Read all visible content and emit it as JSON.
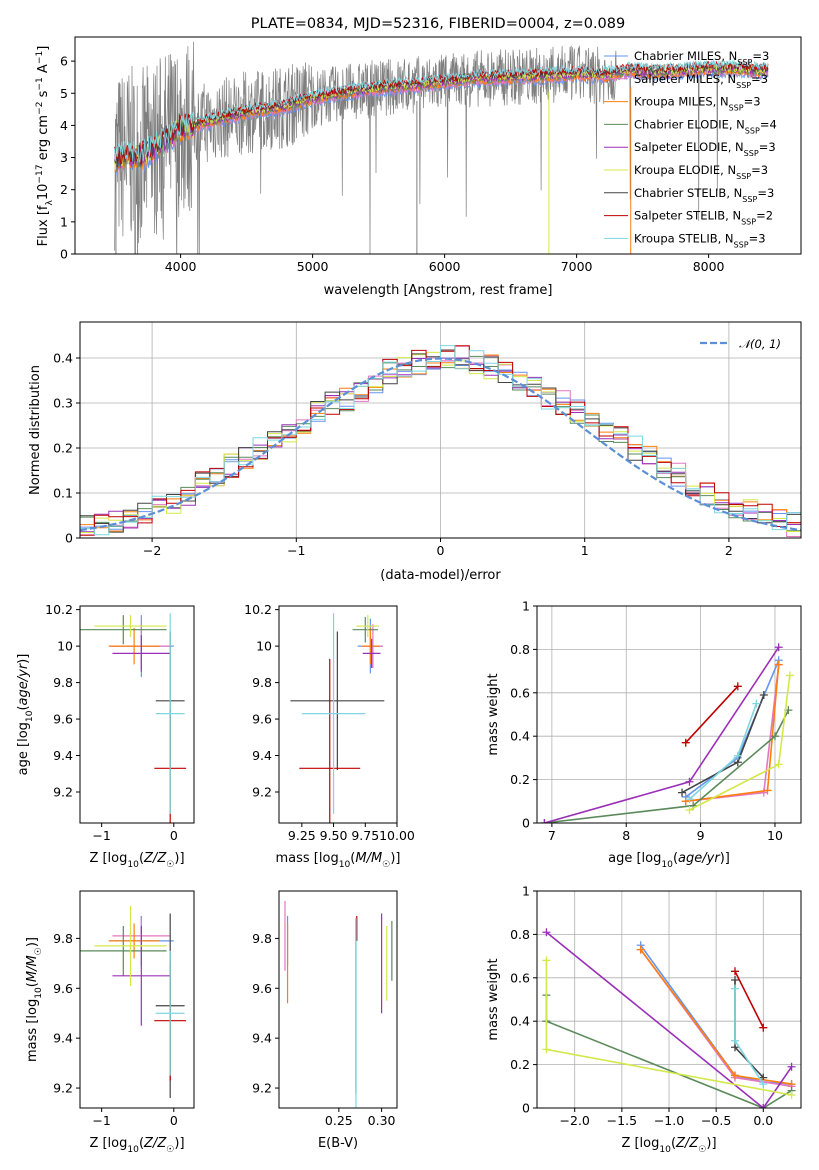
{
  "colors": {
    "chabrier_miles": "#6495ed",
    "salpeter_miles": "#e377c2",
    "kroupa_miles": "#ff7f0e",
    "chabrier_elodie": "#5a8a5a",
    "salpeter_elodie": "#9b30b8",
    "kroupa_elodie": "#d4e84a",
    "chabrier_stelib": "#444444",
    "salpeter_stelib": "#c00000",
    "kroupa_stelib": "#7fd6e0",
    "normal_curve": "#5b8fd6",
    "data": "#7f7f7f"
  },
  "chart_data": [
    {
      "type": "line",
      "title": "PLATE=0834, MJD=52316, FIBERID=0004, z=0.089",
      "xlabel": "wavelength [Angstrom, rest frame]",
      "ylabel": "Flux [f_λ10^-17 erg cm^-2 s^-1 A^-1]",
      "xlim": [
        3200,
        8700
      ],
      "ylim": [
        0,
        6.75
      ],
      "xticks": [
        4000,
        5000,
        6000,
        7000,
        8000
      ],
      "yticks": [
        0,
        1,
        2,
        3,
        4,
        5,
        6
      ],
      "legend_position": "top-right",
      "series": [
        {
          "name": "Chabrier MILES, N_SSP=3",
          "color_key": "chabrier_miles"
        },
        {
          "name": "Salpeter MILES, N_SSP=3",
          "color_key": "salpeter_miles"
        },
        {
          "name": "Kroupa MILES, N_SSP=3",
          "color_key": "kroupa_miles"
        },
        {
          "name": "Chabrier ELODIE, N_SSP=4",
          "color_key": "chabrier_elodie"
        },
        {
          "name": "Salpeter ELODIE, N_SSP=3",
          "color_key": "salpeter_elodie"
        },
        {
          "name": "Kroupa ELODIE, N_SSP=3",
          "color_key": "kroupa_elodie"
        },
        {
          "name": "Chabrier STELIB, N_SSP=3",
          "color_key": "chabrier_stelib"
        },
        {
          "name": "Salpeter STELIB, N_SSP=2",
          "color_key": "salpeter_stelib"
        },
        {
          "name": "Kroupa STELIB, N_SSP=3",
          "color_key": "kroupa_stelib"
        }
      ],
      "model_continuum": {
        "wavelength": [
          3500,
          3600,
          3700,
          3800,
          3900,
          4000,
          4200,
          4500,
          4800,
          5000,
          5300,
          5600,
          5900,
          6200,
          6500,
          6800,
          7000,
          7200,
          7400,
          7600,
          7800,
          8000,
          8200,
          8400
        ],
        "flux": [
          2.9,
          3.1,
          3.0,
          3.3,
          3.6,
          3.9,
          4.1,
          4.4,
          4.6,
          4.85,
          5.05,
          5.2,
          5.3,
          5.45,
          5.5,
          5.55,
          5.6,
          5.55,
          5.7,
          5.65,
          5.7,
          5.75,
          5.75,
          5.7
        ]
      },
      "model_wavelength_range": [
        3500,
        8450
      ]
    },
    {
      "type": "bar",
      "ylabel": "Normed distribution",
      "xlabel": "(data-model)/error",
      "xlim": [
        -2.5,
        2.5
      ],
      "ylim": [
        0,
        0.48
      ],
      "xticks": [
        -2,
        -1,
        0,
        1,
        2
      ],
      "yticks": [
        0.0,
        0.1,
        0.2,
        0.3,
        0.4
      ],
      "legend": {
        "label": "𝒩(0, 1)",
        "position": "top-right"
      },
      "bin_edges_start": -2.5,
      "bin_width": 0.1,
      "hist_base": [
        0.025,
        0.03,
        0.04,
        0.045,
        0.06,
        0.07,
        0.08,
        0.1,
        0.12,
        0.14,
        0.16,
        0.18,
        0.2,
        0.22,
        0.24,
        0.26,
        0.28,
        0.3,
        0.31,
        0.33,
        0.35,
        0.37,
        0.38,
        0.39,
        0.4,
        0.4,
        0.4,
        0.39,
        0.38,
        0.37,
        0.35,
        0.33,
        0.31,
        0.3,
        0.28,
        0.26,
        0.24,
        0.22,
        0.2,
        0.18,
        0.16,
        0.14,
        0.12,
        0.1,
        0.08,
        0.07,
        0.06,
        0.05,
        0.04,
        0.03
      ]
    },
    {
      "type": "scatter",
      "xlabel": "Z [log₁₀(Z/Z☉)]",
      "ylabel": "age [log₁₀(age/yr)]",
      "xlim": [
        -1.3,
        0.28
      ],
      "ylim": [
        9.03,
        10.22
      ],
      "xticks": [
        -1,
        0
      ],
      "yticks": [
        9.2,
        9.4,
        9.6,
        9.8,
        10.0,
        10.2
      ],
      "points": [
        {
          "x": -0.45,
          "y": 10.0,
          "xerr": 0.45,
          "yerr": 0.17,
          "color_key": "chabrier_miles"
        },
        {
          "x": -0.45,
          "y": 10.0,
          "xerr": 0.4,
          "yerr": 0.12,
          "color_key": "salpeter_miles"
        },
        {
          "x": -0.55,
          "y": 10.0,
          "xerr": 0.35,
          "yerr": 0.1,
          "color_key": "kroupa_miles"
        },
        {
          "x": -0.7,
          "y": 10.09,
          "xerr": 0.6,
          "yerr": 0.08,
          "color_key": "chabrier_elodie"
        },
        {
          "x": -0.45,
          "y": 9.96,
          "xerr": 0.4,
          "yerr": 0.1,
          "color_key": "salpeter_elodie"
        },
        {
          "x": -0.6,
          "y": 10.11,
          "xerr": 0.5,
          "yerr": 0.06,
          "color_key": "kroupa_elodie"
        },
        {
          "x": -0.05,
          "y": 9.7,
          "xerr": 0.2,
          "yerr": 0.38,
          "color_key": "chabrier_stelib"
        },
        {
          "x": -0.05,
          "y": 9.33,
          "xerr": 0.22,
          "yerr": 0.32,
          "color_key": "salpeter_stelib"
        },
        {
          "x": -0.05,
          "y": 9.63,
          "xerr": 0.2,
          "yerr": 0.55,
          "color_key": "kroupa_stelib"
        }
      ]
    },
    {
      "type": "scatter",
      "xlabel": "mass [log₁₀(M/M☉)]",
      "ylabel": "",
      "xlim": [
        9.07,
        10.0
      ],
      "ylim": [
        9.03,
        10.22
      ],
      "xticks": [
        9.25,
        9.5,
        9.75,
        10.0
      ],
      "xtick_labels": [
        "9.25",
        "9.50",
        "9.75",
        "10.00"
      ],
      "yticks": [
        9.2,
        9.4,
        9.6,
        9.8,
        10.0,
        10.2
      ],
      "points": [
        {
          "x": 9.79,
          "y": 10.0,
          "xerr": 0.1,
          "yerr": 0.15,
          "color_key": "chabrier_miles"
        },
        {
          "x": 9.81,
          "y": 10.0,
          "xerr": 0.08,
          "yerr": 0.12,
          "color_key": "salpeter_miles"
        },
        {
          "x": 9.79,
          "y": 10.0,
          "xerr": 0.07,
          "yerr": 0.1,
          "color_key": "kroupa_miles"
        },
        {
          "x": 9.75,
          "y": 10.09,
          "xerr": 0.1,
          "yerr": 0.07,
          "color_key": "chabrier_elodie"
        },
        {
          "x": 9.8,
          "y": 9.96,
          "xerr": 0.07,
          "yerr": 0.08,
          "color_key": "salpeter_elodie"
        },
        {
          "x": 9.77,
          "y": 10.11,
          "xerr": 0.09,
          "yerr": 0.06,
          "color_key": "kroupa_elodie"
        },
        {
          "x": 9.53,
          "y": 9.7,
          "xerr": 0.37,
          "yerr": 0.38,
          "color_key": "chabrier_stelib"
        },
        {
          "x": 9.47,
          "y": 9.33,
          "xerr": 0.24,
          "yerr": 0.6,
          "color_key": "salpeter_stelib"
        },
        {
          "x": 9.5,
          "y": 9.63,
          "xerr": 0.25,
          "yerr": 0.55,
          "color_key": "kroupa_stelib"
        }
      ]
    },
    {
      "type": "line",
      "xlabel": "age [log₁₀(age/yr)]",
      "ylabel": "mass weight",
      "xlim": [
        6.8,
        10.35
      ],
      "ylim": [
        0,
        1.0
      ],
      "xticks": [
        7,
        8,
        9,
        10
      ],
      "yticks": [
        0.0,
        0.2,
        0.4,
        0.6,
        0.8,
        1.0
      ],
      "series": [
        {
          "color_key": "chabrier_miles",
          "x": [
            8.8,
            9.5,
            10.05
          ],
          "y": [
            0.12,
            0.3,
            0.75
          ]
        },
        {
          "color_key": "salpeter_miles",
          "x": [
            8.8,
            9.85,
            10.05
          ],
          "y": [
            0.1,
            0.14,
            0.73
          ]
        },
        {
          "color_key": "kroupa_miles",
          "x": [
            8.8,
            9.9,
            10.05
          ],
          "y": [
            0.1,
            0.15,
            0.73
          ]
        },
        {
          "color_key": "chabrier_elodie",
          "x": [
            6.9,
            8.9,
            10.0,
            10.18
          ],
          "y": [
            0.0,
            0.08,
            0.4,
            0.52
          ]
        },
        {
          "color_key": "salpeter_elodie",
          "x": [
            6.9,
            8.85,
            10.05
          ],
          "y": [
            0.0,
            0.19,
            0.81
          ]
        },
        {
          "color_key": "kroupa_elodie",
          "x": [
            8.85,
            10.05,
            10.2
          ],
          "y": [
            0.06,
            0.27,
            0.68
          ]
        },
        {
          "color_key": "chabrier_stelib",
          "x": [
            8.75,
            9.5,
            9.85
          ],
          "y": [
            0.14,
            0.28,
            0.59
          ]
        },
        {
          "color_key": "salpeter_stelib",
          "x": [
            8.8,
            9.5
          ],
          "y": [
            0.37,
            0.63
          ]
        },
        {
          "color_key": "kroupa_stelib",
          "x": [
            8.85,
            9.5,
            9.75
          ],
          "y": [
            0.11,
            0.31,
            0.55
          ]
        }
      ]
    },
    {
      "type": "scatter",
      "xlabel": "Z [log₁₀(Z/Z☉)]",
      "ylabel": "mass [log₁₀(M/M☉)]",
      "xlim": [
        -1.3,
        0.28
      ],
      "ylim": [
        9.12,
        9.99
      ],
      "xticks": [
        -1,
        0
      ],
      "yticks": [
        9.2,
        9.4,
        9.6,
        9.8
      ],
      "points": [
        {
          "x": -0.45,
          "y": 9.79,
          "xerr": 0.45,
          "yerr": 0.1,
          "color_key": "chabrier_miles"
        },
        {
          "x": -0.45,
          "y": 9.81,
          "xerr": 0.4,
          "yerr": 0.08,
          "color_key": "salpeter_miles"
        },
        {
          "x": -0.55,
          "y": 9.79,
          "xerr": 0.35,
          "yerr": 0.07,
          "color_key": "kroupa_miles"
        },
        {
          "x": -0.7,
          "y": 9.75,
          "xerr": 0.6,
          "yerr": 0.1,
          "color_key": "chabrier_elodie"
        },
        {
          "x": -0.45,
          "y": 9.65,
          "xerr": 0.4,
          "yerr": 0.2,
          "color_key": "salpeter_elodie"
        },
        {
          "x": -0.6,
          "y": 9.77,
          "xerr": 0.5,
          "yerr": 0.16,
          "color_key": "kroupa_elodie"
        },
        {
          "x": -0.05,
          "y": 9.53,
          "xerr": 0.2,
          "yerr": 0.37,
          "color_key": "chabrier_stelib"
        },
        {
          "x": -0.05,
          "y": 9.47,
          "xerr": 0.22,
          "yerr": 0.24,
          "color_key": "salpeter_stelib"
        },
        {
          "x": -0.05,
          "y": 9.5,
          "xerr": 0.2,
          "yerr": 0.25,
          "color_key": "kroupa_stelib"
        }
      ]
    },
    {
      "type": "scatter",
      "xlabel": "E(B-V)",
      "ylabel": "",
      "xlim": [
        0.18,
        0.318
      ],
      "ylim": [
        9.12,
        9.99
      ],
      "xticks": [
        0.25,
        0.3
      ],
      "xtick_labels": [
        "0.25",
        "0.30"
      ],
      "yticks": [
        9.2,
        9.4,
        9.6,
        9.8
      ],
      "points": [
        {
          "x": 0.19,
          "y": 9.79,
          "yerr": 0.1,
          "color_key": "chabrier_miles"
        },
        {
          "x": 0.187,
          "y": 9.81,
          "yerr": 0.14,
          "color_key": "salpeter_miles"
        },
        {
          "x": 0.19,
          "y": 9.7,
          "yerr": 0.16,
          "color_key": "kroupa_miles"
        },
        {
          "x": 0.312,
          "y": 9.75,
          "yerr": 0.12,
          "color_key": "chabrier_elodie"
        },
        {
          "x": 0.3,
          "y": 9.7,
          "yerr": 0.2,
          "color_key": "salpeter_elodie"
        },
        {
          "x": 0.306,
          "y": 9.7,
          "yerr": 0.15,
          "color_key": "kroupa_elodie"
        },
        {
          "x": 0.27,
          "y": 9.53,
          "yerr": 0.35,
          "color_key": "chabrier_stelib"
        },
        {
          "x": 0.271,
          "y": 9.84,
          "yerr": 0.05,
          "color_key": "salpeter_stelib"
        },
        {
          "x": 0.27,
          "y": 9.5,
          "yerr": 0.38,
          "color_key": "kroupa_stelib"
        }
      ]
    },
    {
      "type": "line",
      "xlabel": "Z [log₁₀(Z/Z☉)]",
      "ylabel": "mass weight",
      "xlim": [
        -2.4,
        0.4
      ],
      "ylim": [
        0,
        1.0
      ],
      "xticks": [
        -2.0,
        -1.5,
        -1.0,
        -0.5,
        0.0
      ],
      "xtick_labels": [
        "−2.0",
        "−1.5",
        "−1.0",
        "−0.5",
        "0.0"
      ],
      "yticks": [
        0.0,
        0.2,
        0.4,
        0.6,
        0.8,
        1.0
      ],
      "series": [
        {
          "color_key": "chabrier_miles",
          "x": [
            -1.3,
            -0.3,
            0.0,
            0.3
          ],
          "y": [
            0.75,
            0.15,
            0.12,
            0.11
          ]
        },
        {
          "color_key": "salpeter_miles",
          "x": [
            -1.3,
            -0.3,
            0.3
          ],
          "y": [
            0.73,
            0.14,
            0.1
          ]
        },
        {
          "color_key": "kroupa_miles",
          "x": [
            -1.3,
            -0.3,
            0.3
          ],
          "y": [
            0.73,
            0.15,
            0.11
          ]
        },
        {
          "color_key": "chabrier_elodie",
          "x": [
            -2.3,
            -2.3,
            0.0,
            0.3
          ],
          "y": [
            0.52,
            0.4,
            0.0,
            0.08
          ]
        },
        {
          "color_key": "salpeter_elodie",
          "x": [
            -2.3,
            0.0,
            0.3
          ],
          "y": [
            0.81,
            0.0,
            0.19
          ]
        },
        {
          "color_key": "kroupa_elodie",
          "x": [
            -2.3,
            -2.3,
            0.3
          ],
          "y": [
            0.68,
            0.27,
            0.06
          ]
        },
        {
          "color_key": "chabrier_stelib",
          "x": [
            -0.3,
            -0.3,
            0.0
          ],
          "y": [
            0.59,
            0.28,
            0.14
          ]
        },
        {
          "color_key": "salpeter_stelib",
          "x": [
            -0.3,
            0.0
          ],
          "y": [
            0.63,
            0.37
          ]
        },
        {
          "color_key": "kroupa_stelib",
          "x": [
            -0.3,
            -0.3,
            0.0
          ],
          "y": [
            0.55,
            0.31,
            0.11
          ]
        }
      ]
    }
  ]
}
